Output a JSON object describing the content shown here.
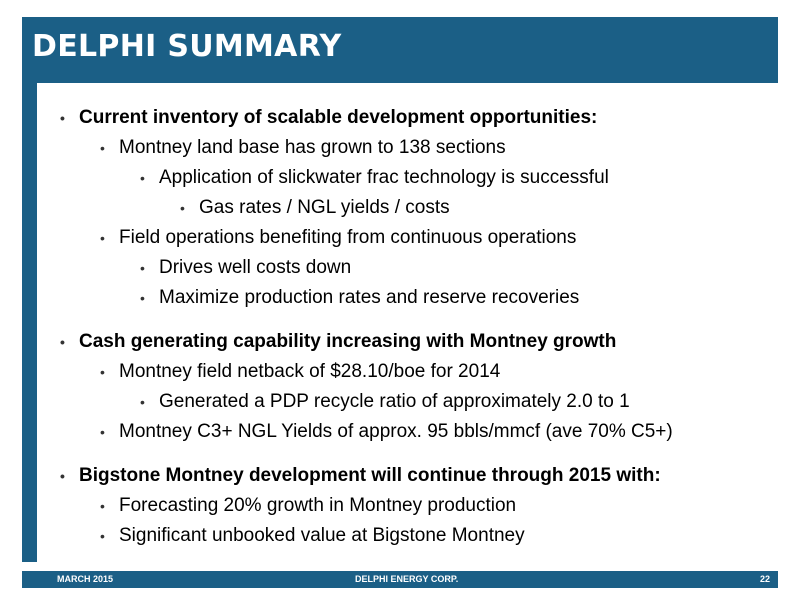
{
  "header": {
    "title": "DELPHI SUMMARY"
  },
  "body": {
    "lines": [
      {
        "level": 0,
        "bold": true,
        "text": "Current inventory of scalable development opportunities:"
      },
      {
        "level": 1,
        "bold": false,
        "text": "Montney land base has grown to 138 sections"
      },
      {
        "level": 2,
        "bold": false,
        "text": "Application of slickwater frac technology is successful"
      },
      {
        "level": 3,
        "bold": false,
        "text": "Gas rates / NGL yields / costs"
      },
      {
        "level": 1,
        "bold": false,
        "text": "Field operations benefiting from continuous operations"
      },
      {
        "level": 2,
        "bold": false,
        "text": "Drives well costs down"
      },
      {
        "level": 2,
        "bold": false,
        "text": "Maximize production rates and reserve recoveries"
      },
      {
        "level": 0,
        "bold": true,
        "gap_before": true,
        "text": "Cash generating capability increasing with Montney growth"
      },
      {
        "level": 1,
        "bold": false,
        "text": "Montney field netback of $28.10/boe for 2014"
      },
      {
        "level": 2,
        "bold": false,
        "text": "Generated a PDP recycle ratio of approximately 2.0 to 1"
      },
      {
        "level": 1,
        "bold": false,
        "text": "Montney C3+ NGL Yields of approx. 95 bbls/mmcf (ave 70%  C5+)"
      },
      {
        "level": 0,
        "bold": true,
        "gap_before": true,
        "text": "Bigstone Montney development will continue through 2015 with:"
      },
      {
        "level": 1,
        "bold": false,
        "text": "Forecasting 20% growth in Montney production"
      },
      {
        "level": 1,
        "bold": false,
        "text": "Significant unbooked value at Bigstone Montney"
      }
    ]
  },
  "footer": {
    "date": "MARCH 2015",
    "company": "DELPHI ENERGY CORP.",
    "page": "22"
  },
  "colors": {
    "accent": "#1b5f86"
  }
}
